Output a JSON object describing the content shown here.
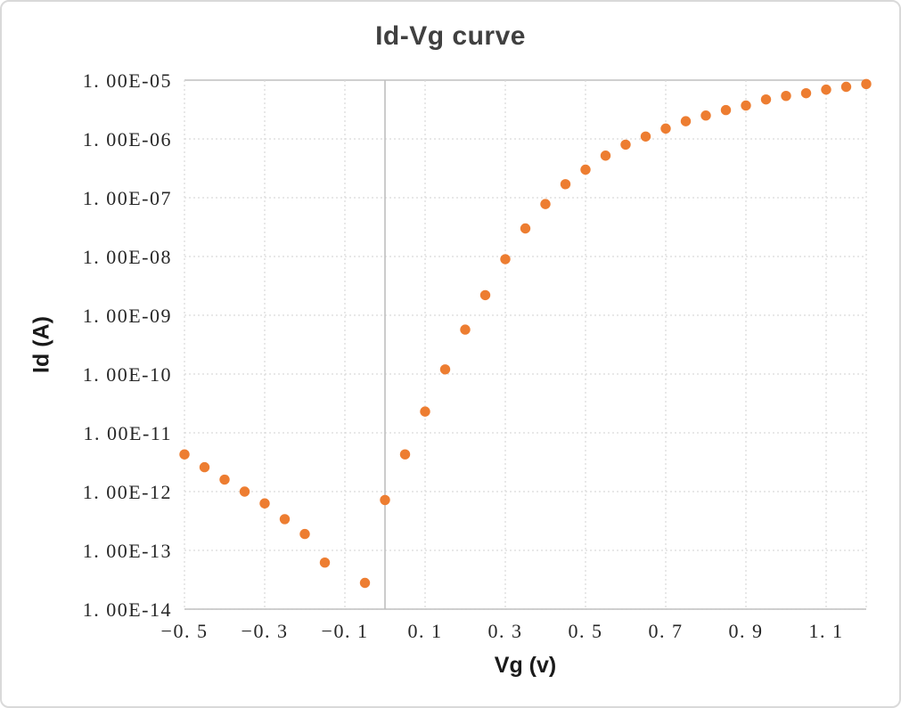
{
  "window": {
    "background": "#ffffff",
    "border_color": "#d9d9d9"
  },
  "chart_data": {
    "type": "scatter",
    "title": "Id-Vg curve",
    "xlabel": "Vg (v)",
    "ylabel": "Id (A)",
    "x_scale": "linear",
    "y_scale": "log",
    "xlim": [
      -0.5,
      1.2
    ],
    "ylim": [
      1e-14,
      1e-05
    ],
    "grid": true,
    "legend": false,
    "x_tick_values": [
      -0.5,
      -0.3,
      -0.1,
      0.1,
      0.3,
      0.5,
      0.7,
      0.9,
      1.1
    ],
    "x_tick_labels": [
      "−0. 5",
      "−0. 3",
      "−0. 1",
      "0. 1",
      "0. 3",
      "0. 5",
      "0. 7",
      "0. 9",
      "1. 1"
    ],
    "y_tick_values": [
      1e-05,
      1e-06,
      1e-07,
      1e-08,
      1e-09,
      1e-10,
      1e-11,
      1e-12,
      1e-13,
      1e-14
    ],
    "y_tick_labels": [
      "1. 00E-05",
      "1. 00E-06",
      "1. 00E-07",
      "1. 00E-08",
      "1. 00E-09",
      "1. 00E-10",
      "1. 00E-11",
      "1. 00E-12",
      "1. 00E-13",
      "1. 00E-14"
    ],
    "colors": {
      "marker": "#ED7D31",
      "gridline": "#D9D9D9",
      "axis_line": "#BFBFBF",
      "title": "#404040",
      "tick_label": "#262626",
      "axis_title": "#1A1A1A"
    },
    "y_axis_cross_x": 0,
    "notes": "Vg step is 0.05 V; the point at Vg = -0.1 lies below the axis minimum (1.00E-14) and is not plotted.",
    "series": [
      {
        "name": "Id",
        "marker": "circle",
        "points": [
          {
            "vg": -0.5,
            "id": 4.3e-12
          },
          {
            "vg": -0.45,
            "id": 2.6e-12
          },
          {
            "vg": -0.4,
            "id": 1.6e-12
          },
          {
            "vg": -0.35,
            "id": 1e-12
          },
          {
            "vg": -0.3,
            "id": 6.3e-13
          },
          {
            "vg": -0.25,
            "id": 3.4e-13
          },
          {
            "vg": -0.2,
            "id": 1.9e-13
          },
          {
            "vg": -0.15,
            "id": 6.2e-14
          },
          {
            "vg": -0.1,
            "id": null
          },
          {
            "vg": -0.05,
            "id": 2.8e-14
          },
          {
            "vg": 0.0,
            "id": 7.2e-13
          },
          {
            "vg": 0.05,
            "id": 4.3e-12
          },
          {
            "vg": 0.1,
            "id": 2.3e-11
          },
          {
            "vg": 0.15,
            "id": 1.2e-10
          },
          {
            "vg": 0.2,
            "id": 5.7e-10
          },
          {
            "vg": 0.25,
            "id": 2.2e-09
          },
          {
            "vg": 0.3,
            "id": 9e-09
          },
          {
            "vg": 0.35,
            "id": 3e-08
          },
          {
            "vg": 0.4,
            "id": 7.8e-08
          },
          {
            "vg": 0.45,
            "id": 1.7e-07
          },
          {
            "vg": 0.5,
            "id": 3e-07
          },
          {
            "vg": 0.55,
            "id": 5.2e-07
          },
          {
            "vg": 0.6,
            "id": 8e-07
          },
          {
            "vg": 0.65,
            "id": 1.1e-06
          },
          {
            "vg": 0.7,
            "id": 1.5e-06
          },
          {
            "vg": 0.75,
            "id": 2e-06
          },
          {
            "vg": 0.8,
            "id": 2.5e-06
          },
          {
            "vg": 0.85,
            "id": 3.1e-06
          },
          {
            "vg": 0.9,
            "id": 3.7e-06
          },
          {
            "vg": 0.95,
            "id": 4.7e-06
          },
          {
            "vg": 1.0,
            "id": 5.4e-06
          },
          {
            "vg": 1.05,
            "id": 6e-06
          },
          {
            "vg": 1.1,
            "id": 6.9e-06
          },
          {
            "vg": 1.15,
            "id": 7.7e-06
          },
          {
            "vg": 1.2,
            "id": 8.6e-06
          }
        ]
      }
    ]
  }
}
